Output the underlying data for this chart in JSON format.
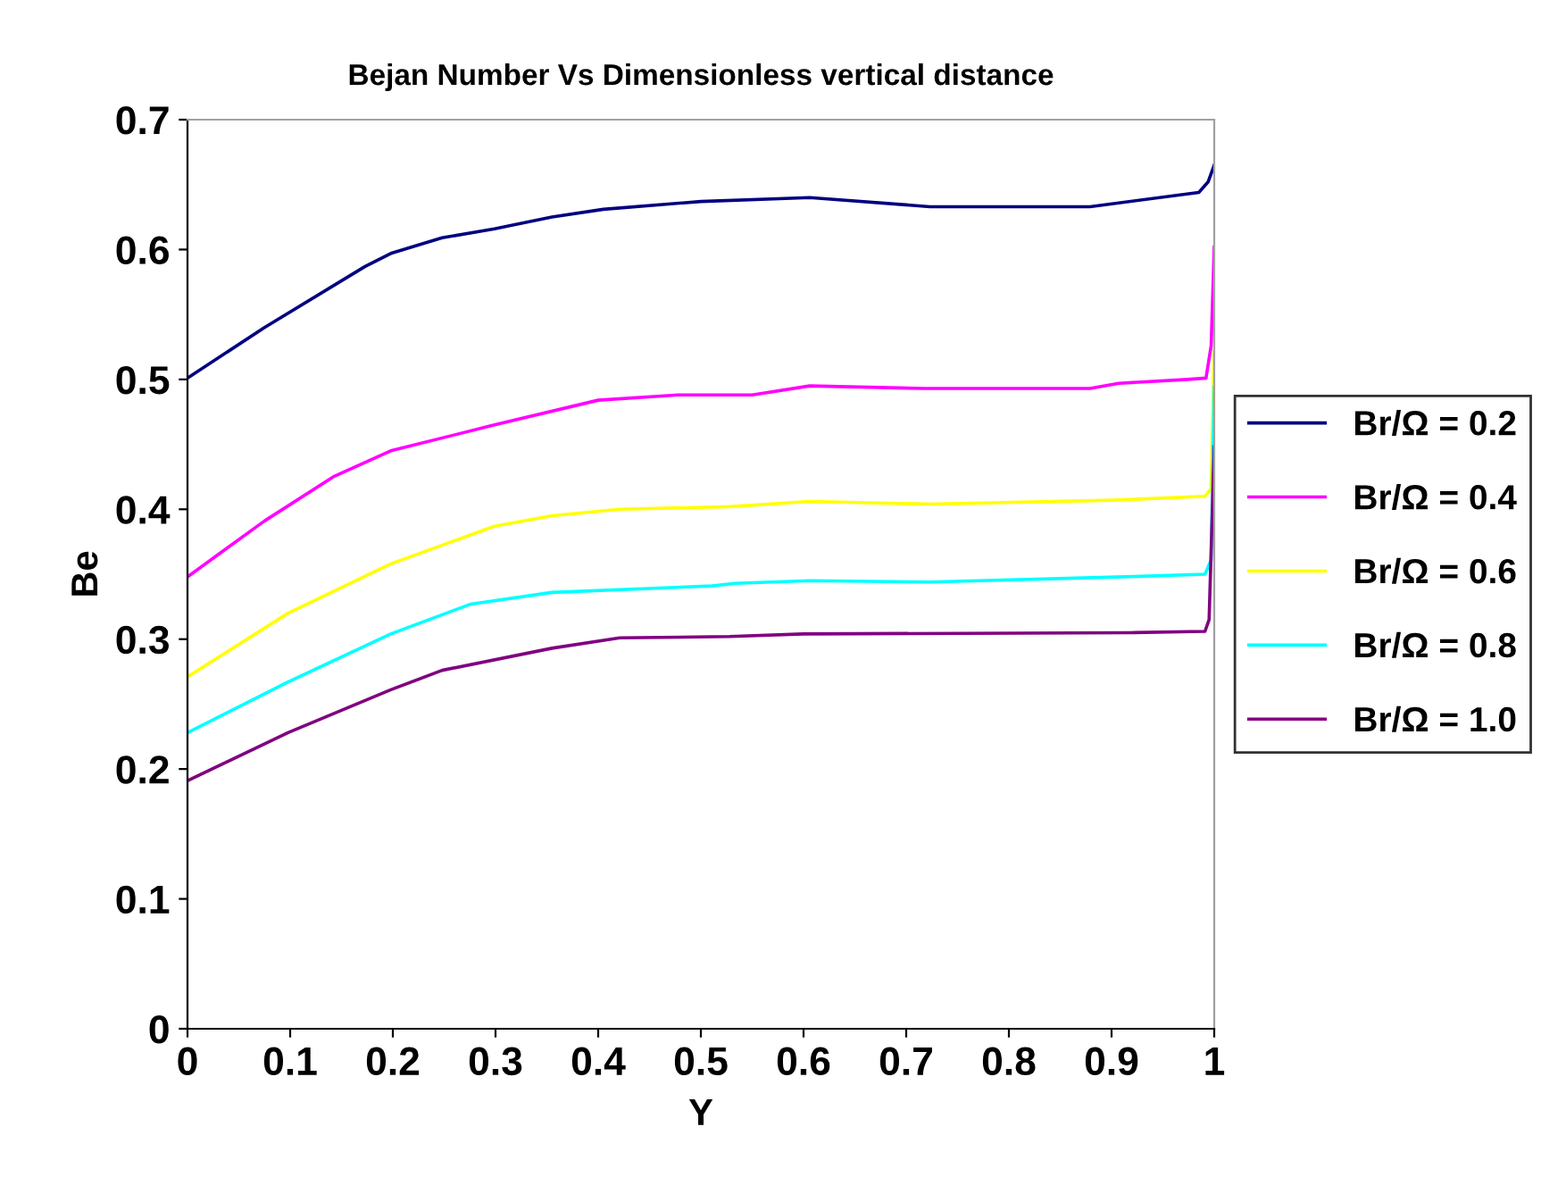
{
  "chart_data": {
    "type": "line",
    "title": "Bejan Number Vs Dimensionless vertical distance",
    "xlabel": "Y",
    "ylabel": "Be",
    "xlim": [
      0,
      1
    ],
    "xticks": [
      0,
      0.1,
      0.2,
      0.3,
      0.4,
      0.5,
      0.6,
      0.7,
      0.8,
      0.9,
      1
    ],
    "ylim": [
      0,
      0.7
    ],
    "yticks": [
      0,
      0.1,
      0.2,
      0.3,
      0.4,
      0.5,
      0.6,
      0.7
    ],
    "grid": false,
    "legend": "right",
    "marker": "none",
    "line_style": "solid",
    "series": [
      {
        "name": "Br/Ω = 0.2",
        "color": "#000080",
        "x": [
          0,
          0.075,
          0.173,
          0.198,
          0.248,
          0.299,
          0.355,
          0.405,
          0.5,
          0.606,
          0.723,
          0.879,
          0.985,
          0.994,
          1.0
        ],
        "values": [
          0.501,
          0.54,
          0.587,
          0.597,
          0.609,
          0.616,
          0.625,
          0.631,
          0.637,
          0.64,
          0.633,
          0.633,
          0.644,
          0.652,
          0.665
        ]
      },
      {
        "name": "Br/Ω = 0.4",
        "color": "#ff00ff",
        "x": [
          0,
          0.075,
          0.142,
          0.198,
          0.299,
          0.4,
          0.478,
          0.55,
          0.606,
          0.717,
          0.879,
          0.907,
          0.974,
          0.992,
          0.997,
          1.0
        ],
        "values": [
          0.348,
          0.391,
          0.425,
          0.445,
          0.465,
          0.484,
          0.488,
          0.488,
          0.495,
          0.493,
          0.493,
          0.497,
          0.5,
          0.501,
          0.526,
          0.602
        ]
      },
      {
        "name": "Br/Ω = 0.6",
        "color": "#ffff00",
        "x": [
          0,
          0.098,
          0.198,
          0.299,
          0.355,
          0.421,
          0.528,
          0.606,
          0.723,
          0.902,
          0.991,
          0.997,
          1.0
        ],
        "values": [
          0.271,
          0.32,
          0.358,
          0.387,
          0.395,
          0.4,
          0.402,
          0.406,
          0.404,
          0.407,
          0.41,
          0.416,
          0.522
        ]
      },
      {
        "name": "Br/Ω = 0.8",
        "color": "#00ffff",
        "x": [
          0,
          0.098,
          0.198,
          0.276,
          0.355,
          0.511,
          0.533,
          0.606,
          0.723,
          0.913,
          0.991,
          0.997,
          1.0
        ],
        "values": [
          0.228,
          0.267,
          0.304,
          0.327,
          0.336,
          0.341,
          0.343,
          0.345,
          0.344,
          0.348,
          0.35,
          0.361,
          0.494
        ]
      },
      {
        "name": "Br/Ω = 1.0",
        "color": "#800080",
        "x": [
          0,
          0.098,
          0.198,
          0.248,
          0.355,
          0.421,
          0.528,
          0.6,
          0.918,
          0.991,
          0.995,
          1.0
        ],
        "values": [
          0.191,
          0.228,
          0.261,
          0.276,
          0.293,
          0.301,
          0.302,
          0.304,
          0.305,
          0.306,
          0.315,
          0.448
        ]
      }
    ]
  }
}
